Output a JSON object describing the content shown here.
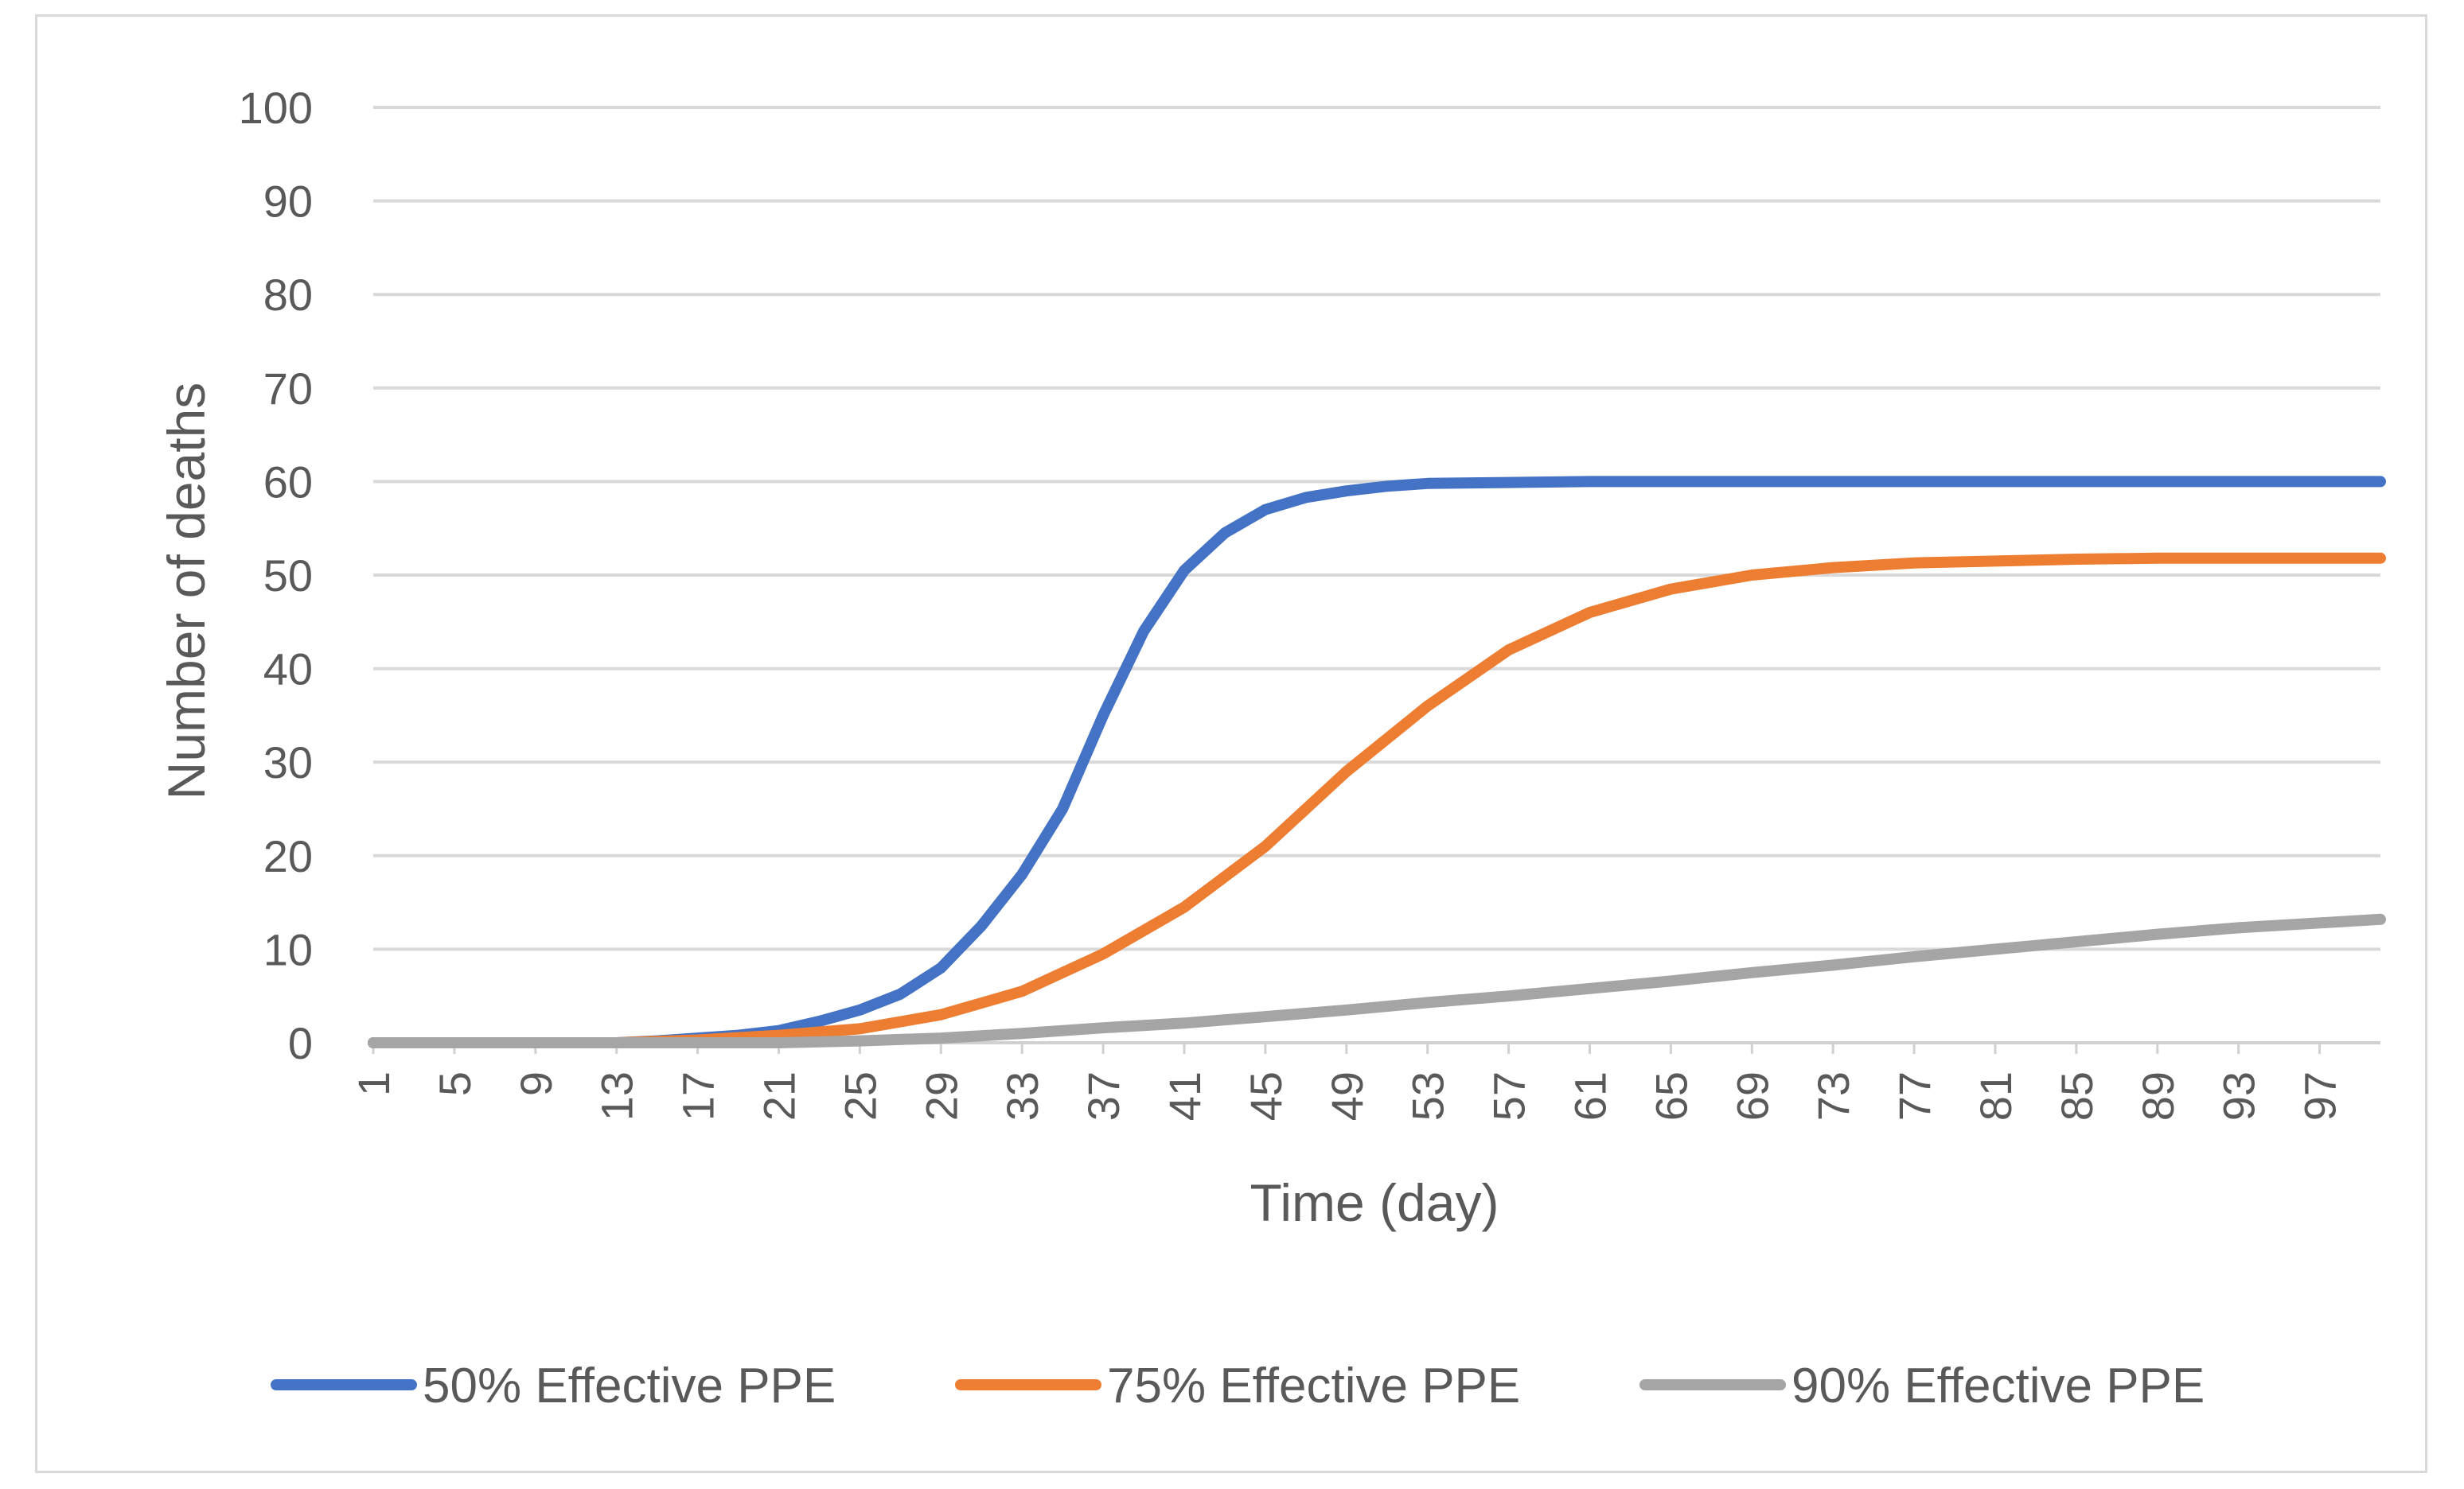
{
  "chart_data": {
    "type": "line",
    "title": "",
    "xlabel": "Time (day)",
    "ylabel": "Number of deaths",
    "ylim": [
      0,
      100
    ],
    "yticks": [
      0,
      10,
      20,
      30,
      40,
      50,
      60,
      70,
      80,
      90,
      100
    ],
    "xlim": [
      1,
      100
    ],
    "xticks": [
      1,
      5,
      9,
      13,
      17,
      21,
      25,
      29,
      33,
      37,
      41,
      45,
      49,
      53,
      57,
      61,
      65,
      69,
      73,
      77,
      81,
      85,
      89,
      93,
      97
    ],
    "grid": true,
    "legend_position": "bottom",
    "series": [
      {
        "name": "50% Effective PPE",
        "color": "#4472c4",
        "points": [
          [
            1,
            0
          ],
          [
            13,
            0
          ],
          [
            15,
            0.2
          ],
          [
            17,
            0.5
          ],
          [
            19,
            0.8
          ],
          [
            21,
            1.3
          ],
          [
            23,
            2.3
          ],
          [
            25,
            3.5
          ],
          [
            27,
            5.2
          ],
          [
            29,
            8
          ],
          [
            31,
            12.5
          ],
          [
            33,
            18
          ],
          [
            35,
            25
          ],
          [
            37,
            35
          ],
          [
            39,
            44
          ],
          [
            41,
            50.5
          ],
          [
            43,
            54.5
          ],
          [
            45,
            57
          ],
          [
            47,
            58.3
          ],
          [
            49,
            59
          ],
          [
            51,
            59.5
          ],
          [
            53,
            59.8
          ],
          [
            57,
            59.9
          ],
          [
            61,
            60
          ],
          [
            100,
            60
          ]
        ]
      },
      {
        "name": "75% Effective PPE",
        "color": "#ed7d31",
        "points": [
          [
            1,
            0
          ],
          [
            13,
            0
          ],
          [
            17,
            0.3
          ],
          [
            21,
            0.8
          ],
          [
            25,
            1.5
          ],
          [
            29,
            3
          ],
          [
            33,
            5.5
          ],
          [
            37,
            9.5
          ],
          [
            41,
            14.5
          ],
          [
            45,
            21
          ],
          [
            49,
            29
          ],
          [
            53,
            36
          ],
          [
            57,
            42
          ],
          [
            61,
            46
          ],
          [
            65,
            48.5
          ],
          [
            69,
            50
          ],
          [
            73,
            50.8
          ],
          [
            77,
            51.3
          ],
          [
            81,
            51.5
          ],
          [
            85,
            51.7
          ],
          [
            89,
            51.8
          ],
          [
            93,
            51.8
          ],
          [
            100,
            51.8
          ]
        ]
      },
      {
        "name": "90% Effective PPE",
        "color": "#a5a5a5",
        "points": [
          [
            1,
            0
          ],
          [
            21,
            0
          ],
          [
            25,
            0.2
          ],
          [
            29,
            0.5
          ],
          [
            33,
            1
          ],
          [
            37,
            1.6
          ],
          [
            41,
            2.1
          ],
          [
            45,
            2.8
          ],
          [
            49,
            3.5
          ],
          [
            53,
            4.3
          ],
          [
            57,
            5
          ],
          [
            61,
            5.8
          ],
          [
            65,
            6.6
          ],
          [
            69,
            7.5
          ],
          [
            73,
            8.3
          ],
          [
            77,
            9.2
          ],
          [
            81,
            10
          ],
          [
            85,
            10.8
          ],
          [
            89,
            11.6
          ],
          [
            93,
            12.3
          ],
          [
            100,
            13.2
          ]
        ]
      }
    ]
  }
}
